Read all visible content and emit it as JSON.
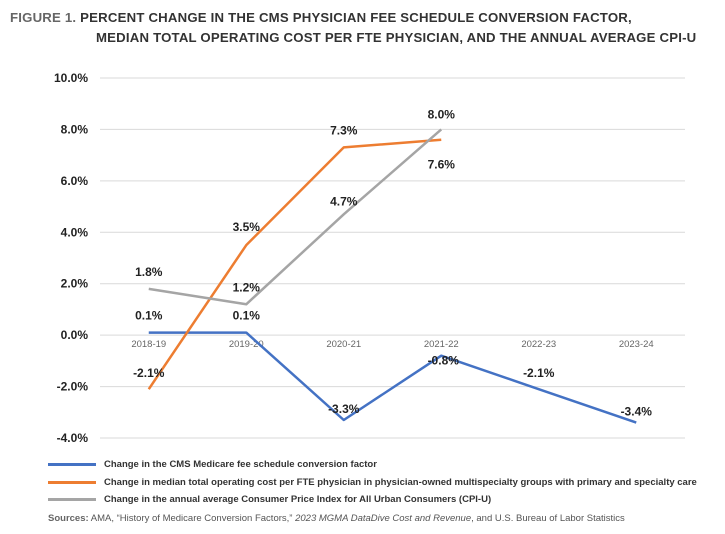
{
  "title": {
    "label": "FIGURE 1.",
    "line1": "PERCENT CHANGE IN THE CMS PHYSICIAN FEE SCHEDULE CONVERSION FACTOR,",
    "line2": "MEDIAN TOTAL OPERATING COST PER FTE PHYSICIAN, AND THE ANNUAL AVERAGE CPI-U"
  },
  "chart_data": {
    "type": "line",
    "categories": [
      "2018-19",
      "2019-20",
      "2020-21",
      "2021-22",
      "2022-23",
      "2023-24"
    ],
    "ylim": [
      -4,
      10
    ],
    "yticks": [
      -4,
      -2,
      0,
      2,
      4,
      6,
      8,
      10
    ],
    "ytick_labels": [
      "-4.0%",
      "-2.0%",
      "0.0%",
      "2.0%",
      "4.0%",
      "6.0%",
      "8.0%",
      "10.0%"
    ],
    "grid": true,
    "legend_position": "bottom",
    "series": [
      {
        "name": "Change in the CMS Medicare fee schedule conversion factor",
        "color": "#4472c4",
        "values": [
          0.1,
          0.1,
          -3.3,
          -0.8,
          -2.1,
          -3.4
        ],
        "labels": [
          "0.1%",
          "0.1%",
          "-3.3%",
          "-0.8%",
          "-2.1%",
          "-3.4%"
        ]
      },
      {
        "name": "Change in median total operating cost per FTE physician in physician-owned multispecialty groups with primary and specialty care",
        "color": "#ed7d31",
        "values": [
          -2.1,
          3.5,
          7.3,
          7.6,
          null,
          null
        ],
        "labels": [
          "-2.1%",
          "3.5%",
          "7.3%",
          "7.6%",
          null,
          null
        ]
      },
      {
        "name": "Change in the annual average Consumer Price Index for All Urban Consumers (CPI-U)",
        "color": "#a5a5a5",
        "values": [
          1.8,
          1.2,
          4.7,
          8.0,
          null,
          null
        ],
        "labels": [
          "1.8%",
          "1.2%",
          "4.7%",
          "8.0%",
          null,
          null
        ]
      }
    ]
  },
  "sources": {
    "label": "Sources:",
    "part1": "AMA, “History of Medicare Conversion Factors,”",
    "part2": "2023 MGMA DataDive Cost and Revenue",
    "part3": ", and U.S. Bureau of Labor Statistics"
  }
}
